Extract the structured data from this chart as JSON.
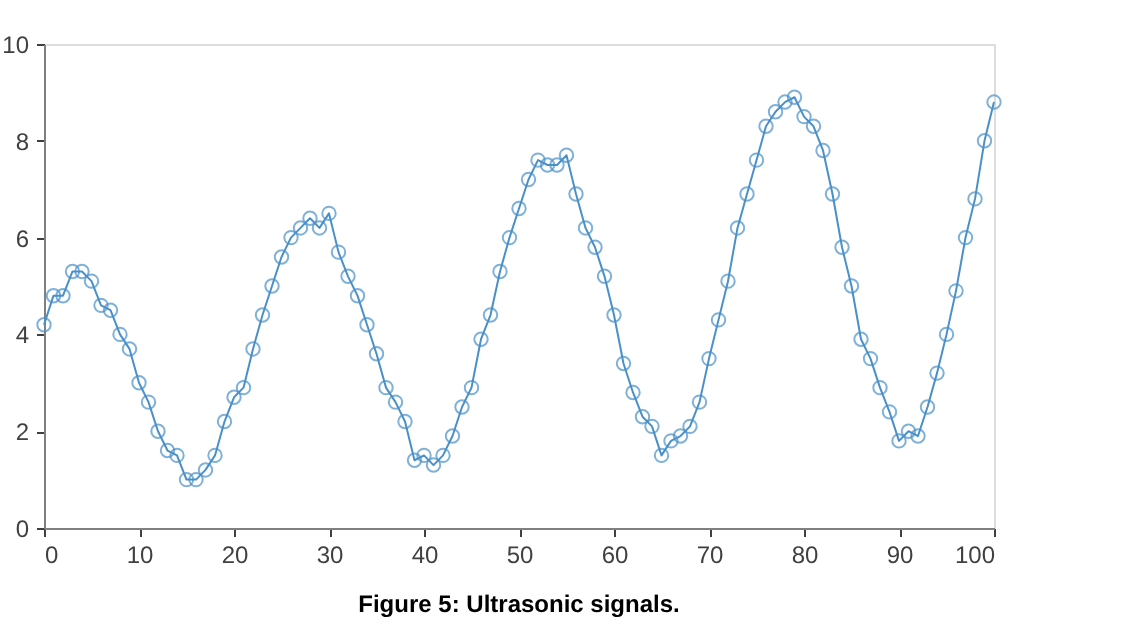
{
  "chart_data": {
    "type": "line",
    "annotations": [
      "Figure 5:  Ultrasonic signals."
    ],
    "x": [
      0,
      1,
      2,
      3,
      4,
      5,
      6,
      7,
      8,
      9,
      10,
      11,
      12,
      13,
      14,
      15,
      16,
      17,
      18,
      19,
      20,
      21,
      22,
      23,
      24,
      25,
      26,
      27,
      28,
      29,
      30,
      31,
      32,
      33,
      34,
      35,
      36,
      37,
      38,
      39,
      40,
      41,
      42,
      43,
      44,
      45,
      46,
      47,
      48,
      49,
      50,
      51,
      52,
      53,
      54,
      55,
      56,
      57,
      58,
      59,
      60,
      61,
      62,
      63,
      64,
      65,
      66,
      67,
      68,
      69,
      70,
      71,
      72,
      73,
      74,
      75,
      76,
      77,
      78,
      79,
      80,
      81,
      82,
      83,
      84,
      85,
      86,
      87,
      88,
      89,
      90,
      91,
      92,
      93,
      94,
      95,
      96,
      97,
      98,
      99,
      100
    ],
    "series": [
      {
        "color": "#4a90c8",
        "values": [
          4.2,
          4.8,
          4.8,
          5.3,
          5.3,
          5.1,
          4.6,
          4.5,
          4.0,
          3.7,
          3.0,
          2.6,
          2.0,
          1.6,
          1.5,
          1.0,
          1.0,
          1.2,
          1.5,
          2.2,
          2.7,
          2.9,
          3.7,
          4.4,
          5.0,
          5.6,
          6.0,
          6.2,
          6.4,
          6.2,
          6.5,
          5.7,
          5.2,
          4.8,
          4.2,
          3.6,
          2.9,
          2.6,
          2.2,
          1.4,
          1.5,
          1.3,
          1.5,
          1.9,
          2.5,
          2.9,
          3.9,
          4.4,
          5.3,
          6.0,
          6.6,
          7.2,
          7.6,
          7.5,
          7.5,
          7.7,
          6.9,
          6.2,
          5.8,
          5.2,
          4.4,
          3.4,
          2.8,
          2.3,
          2.1,
          1.5,
          1.8,
          1.9,
          2.1,
          2.6,
          3.5,
          4.3,
          5.1,
          6.2,
          6.9,
          7.6,
          8.3,
          8.6,
          8.8,
          8.9,
          8.5,
          8.3,
          7.8,
          6.9,
          5.8,
          5.0,
          3.9,
          3.5,
          2.9,
          2.4,
          1.8,
          2.0,
          1.9,
          2.5,
          3.2,
          4.0,
          4.9,
          6.0,
          6.8,
          8.0,
          8.8
        ]
      }
    ],
    "xlim": [
      0,
      100
    ],
    "xticks": [
      0,
      10,
      20,
      30,
      40,
      50,
      60,
      70,
      80,
      90,
      100
    ],
    "ylim": [
      0,
      10
    ],
    "yticks": [
      0,
      2,
      4,
      6,
      8,
      10
    ],
    "marker": "circle",
    "line_style": "solid",
    "grid": false,
    "legend": false
  }
}
